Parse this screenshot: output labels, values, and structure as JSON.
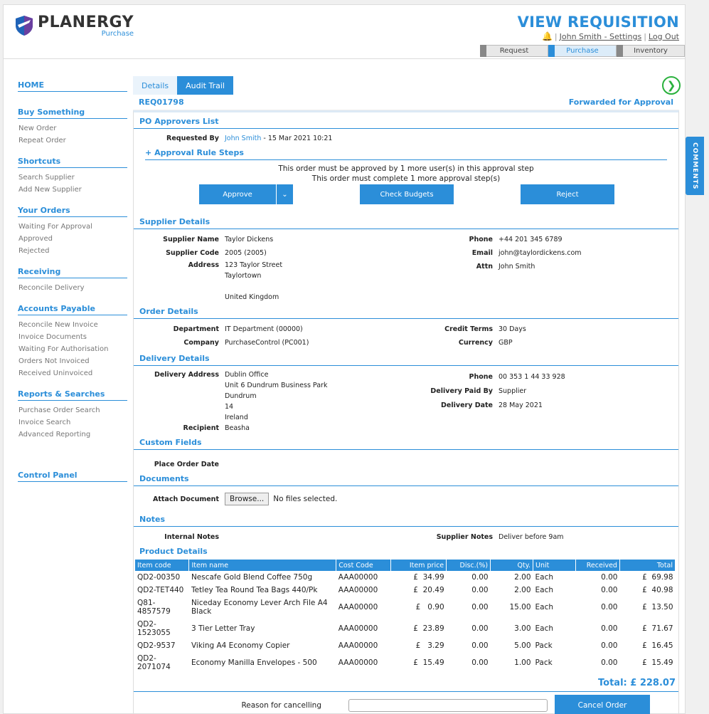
{
  "header": {
    "logo_main": "PLANERGY",
    "logo_sub": "Purchase",
    "view_title": "VIEW REQUISITION",
    "user_settings": "John Smith - Settings",
    "logout": "Log Out",
    "step_tabs": [
      "Request",
      "Purchase",
      "Inventory"
    ]
  },
  "sidebar": {
    "home": "HOME",
    "sections": [
      {
        "title": "Buy Something",
        "items": [
          "New Order",
          "Repeat Order"
        ]
      },
      {
        "title": "Shortcuts",
        "items": [
          "Search Supplier",
          "Add New Supplier"
        ]
      },
      {
        "title": "Your Orders",
        "items": [
          "Waiting For Approval",
          "Approved",
          "Rejected"
        ]
      },
      {
        "title": "Receiving",
        "items": [
          "Reconcile Delivery"
        ]
      },
      {
        "title": "Accounts Payable",
        "items": [
          "Reconcile New Invoice",
          "Invoice Documents",
          "Waiting For Authorisation",
          "Orders Not Invoiced",
          "Received Uninvoiced"
        ]
      },
      {
        "title": "Reports & Searches",
        "items": [
          "Purchase Order Search",
          "Invoice Search",
          "Advanced Reporting"
        ]
      }
    ],
    "control_panel": "Control Panel"
  },
  "tabs": {
    "details": "Details",
    "audit": "Audit Trail"
  },
  "req": {
    "id": "REQ01798",
    "status": "Forwarded for Approval"
  },
  "approvers": {
    "title": "PO Approvers List",
    "requested_by_label": "Requested By",
    "requested_by_name": "John Smith",
    "requested_by_date": " - 15 Mar 2021 10:21",
    "rule_steps": "Approval Rule Steps",
    "msg1": "This order must be approved by 1 more user(s) in this approval step",
    "msg2": "This order must complete 1 more approval step(s)",
    "approve": "Approve",
    "check_budgets": "Check Budgets",
    "reject": "Reject"
  },
  "supplier": {
    "title": "Supplier Details",
    "name_label": "Supplier Name",
    "name": "Taylor Dickens",
    "code_label": "Supplier Code",
    "code": "2005 (2005)",
    "address_label": "Address",
    "address": [
      "123 Taylor Street",
      "Taylortown",
      "",
      "United Kingdom"
    ],
    "phone_label": "Phone",
    "phone": "+44 201 345 6789",
    "email_label": "Email",
    "email": "john@taylordickens.com",
    "attn_label": "Attn",
    "attn": "John Smith"
  },
  "order": {
    "title": "Order Details",
    "dept_label": "Department",
    "dept": "IT Department (00000)",
    "company_label": "Company",
    "company": "PurchaseControl (PC001)",
    "credit_label": "Credit Terms",
    "credit": "30 Days",
    "currency_label": "Currency",
    "currency": "GBP"
  },
  "delivery": {
    "title": "Delivery Details",
    "address_label": "Delivery Address",
    "address": [
      "Dublin Office",
      "Unit 6 Dundrum Business Park",
      "Dundrum",
      "14",
      "Ireland"
    ],
    "recipient_label": "Recipient",
    "recipient": "Beasha",
    "phone_label": "Phone",
    "phone": "00 353 1 44 33 928",
    "paid_label": "Delivery Paid By",
    "paid": "Supplier",
    "date_label": "Delivery Date",
    "date": "28 May 2021"
  },
  "custom": {
    "title": "Custom Fields",
    "place_order_label": "Place Order Date"
  },
  "documents": {
    "title": "Documents",
    "attach_label": "Attach Document",
    "browse": "Browse...",
    "no_files": "No files selected."
  },
  "notes": {
    "title": "Notes",
    "internal_label": "Internal Notes",
    "supplier_label": "Supplier Notes",
    "supplier_notes": "Deliver before 9am"
  },
  "products": {
    "title": "Product Details",
    "columns": [
      "Item code",
      "Item name",
      "Cost Code",
      "Item price",
      "Disc.(%)",
      "Qty.",
      "Unit",
      "Received",
      "Total"
    ],
    "rows": [
      [
        "QD2-00350",
        "Nescafe Gold Blend Coffee 750g",
        "AAA00000",
        "£  34.99",
        "0.00",
        "2.00",
        "Each",
        "0.00",
        "£  69.98"
      ],
      [
        "QD2-TET440",
        "Tetley Tea Round Tea Bags 440/Pk",
        "AAA00000",
        "£  20.49",
        "0.00",
        "2.00",
        "Each",
        "0.00",
        "£  40.98"
      ],
      [
        "Q81-4857579",
        "Niceday Economy Lever Arch File A4 Black",
        "AAA00000",
        "£   0.90",
        "0.00",
        "15.00",
        "Each",
        "0.00",
        "£  13.50"
      ],
      [
        "QD2-1523055",
        "3 Tier Letter Tray",
        "AAA00000",
        "£  23.89",
        "0.00",
        "3.00",
        "Each",
        "0.00",
        "£  71.67"
      ],
      [
        "QD2-9537",
        "Viking A4 Economy Copier",
        "AAA00000",
        "£   3.29",
        "0.00",
        "5.00",
        "Pack",
        "0.00",
        "£  16.45"
      ],
      [
        "QD2-2071074",
        "Economy Manilla Envelopes - 500",
        "AAA00000",
        "£  15.49",
        "0.00",
        "1.00",
        "Pack",
        "0.00",
        "£  15.49"
      ]
    ],
    "total": "Total: £ 228.07"
  },
  "cancel": {
    "reason_label": "Reason for cancelling",
    "button": "Cancel Order"
  },
  "comments": "COMMENTS"
}
